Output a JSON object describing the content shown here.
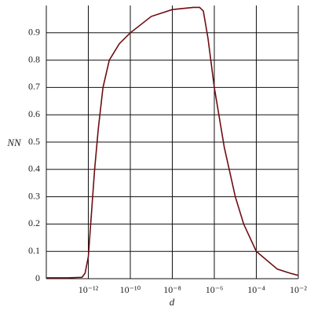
{
  "chart_data": {
    "type": "line",
    "x_label": "d",
    "y_label": "NN",
    "log_x": true,
    "grid": true,
    "xlim": [
      1e-14,
      0.01
    ],
    "ylim": [
      0,
      1
    ],
    "xticks": [
      {
        "value": 1e-12,
        "label": "10⁻¹²"
      },
      {
        "value": 1e-10,
        "label": "10⁻¹⁰"
      },
      {
        "value": 1e-08,
        "label": "10⁻⁸"
      },
      {
        "value": 1e-06,
        "label": "10⁻⁶"
      },
      {
        "value": 0.0001,
        "label": "10⁻⁴"
      },
      {
        "value": 0.01,
        "label": "10⁻²"
      }
    ],
    "yticks": [
      0,
      0.1,
      0.2,
      0.3,
      0.4,
      0.5,
      0.6,
      0.7,
      0.8,
      0.9
    ],
    "x": [
      1e-14,
      1e-13,
      5e-13,
      7e-13,
      1e-12,
      2e-12,
      3e-12,
      5e-12,
      1e-11,
      3e-11,
      1e-10,
      1e-09,
      1e-08,
      1e-07,
      2e-07,
      3e-07,
      5e-07,
      1e-06,
      3e-06,
      1e-05,
      2.5e-05,
      0.0001,
      0.001,
      0.004,
      0.01
    ],
    "series": [
      {
        "color": "#6e0d12",
        "values": [
          0.003,
          0.003,
          0.005,
          0.02,
          0.08,
          0.4,
          0.55,
          0.7,
          0.8,
          0.86,
          0.9,
          0.96,
          0.985,
          0.993,
          0.993,
          0.98,
          0.88,
          0.7,
          0.48,
          0.3,
          0.2,
          0.1,
          0.035,
          0.02,
          0.012
        ]
      }
    ]
  }
}
